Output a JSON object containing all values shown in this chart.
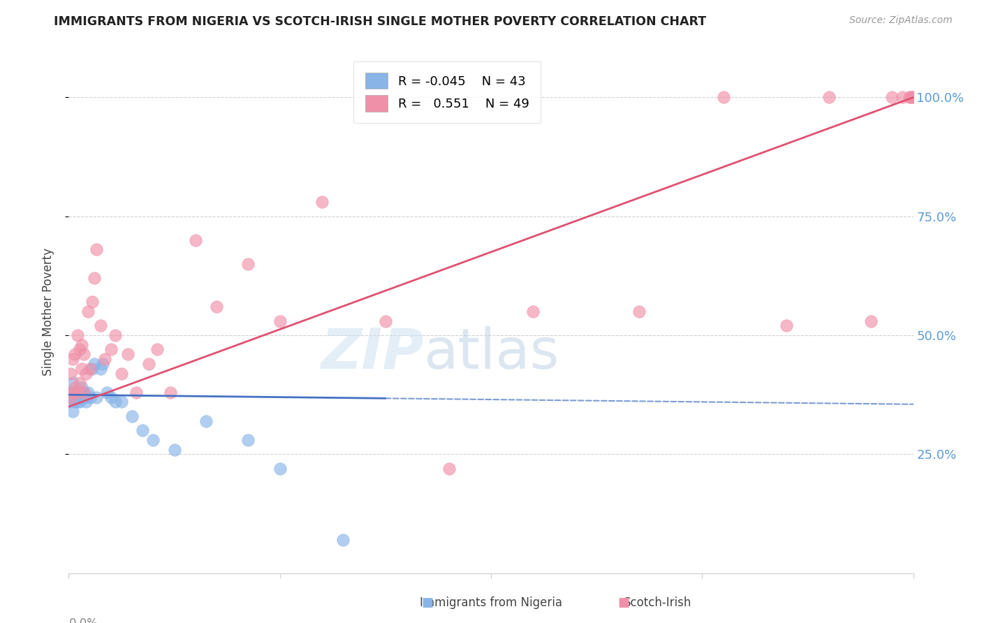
{
  "title": "IMMIGRANTS FROM NIGERIA VS SCOTCH-IRISH SINGLE MOTHER POVERTY CORRELATION CHART",
  "source": "Source: ZipAtlas.com",
  "ylabel": "Single Mother Poverty",
  "ytick_labels": [
    "100.0%",
    "75.0%",
    "50.0%",
    "25.0%"
  ],
  "ytick_values": [
    1.0,
    0.75,
    0.5,
    0.25
  ],
  "xlim": [
    0.0,
    0.4
  ],
  "ylim": [
    0.0,
    1.1
  ],
  "legend_r1": "R = -0.045",
  "legend_n1": "N = 43",
  "legend_r2": "R =  0.551",
  "legend_n2": "N = 49",
  "color_nigeria": "#88b4e8",
  "color_scotch": "#f090a8",
  "color_nigeria_line": "#4472c4",
  "color_scotch_line": "#e05070",
  "color_right_axis": "#5b9bd5",
  "watermark_zip": "ZIP",
  "watermark_atlas": "atlas",
  "nigeria_x": [
    0.0005,
    0.001,
    0.001,
    0.0015,
    0.002,
    0.002,
    0.002,
    0.003,
    0.003,
    0.003,
    0.003,
    0.004,
    0.004,
    0.004,
    0.005,
    0.005,
    0.005,
    0.006,
    0.006,
    0.006,
    0.007,
    0.007,
    0.008,
    0.008,
    0.009,
    0.01,
    0.011,
    0.012,
    0.013,
    0.015,
    0.016,
    0.018,
    0.02,
    0.022,
    0.025,
    0.03,
    0.035,
    0.04,
    0.05,
    0.065,
    0.085,
    0.1,
    0.13
  ],
  "nigeria_y": [
    0.37,
    0.36,
    0.38,
    0.37,
    0.34,
    0.37,
    0.4,
    0.36,
    0.37,
    0.38,
    0.37,
    0.36,
    0.37,
    0.38,
    0.36,
    0.37,
    0.38,
    0.37,
    0.38,
    0.39,
    0.37,
    0.38,
    0.36,
    0.37,
    0.38,
    0.37,
    0.43,
    0.44,
    0.37,
    0.43,
    0.44,
    0.38,
    0.37,
    0.36,
    0.36,
    0.33,
    0.3,
    0.28,
    0.26,
    0.32,
    0.28,
    0.22,
    0.07
  ],
  "scotch_x": [
    0.001,
    0.001,
    0.002,
    0.002,
    0.003,
    0.003,
    0.004,
    0.004,
    0.005,
    0.005,
    0.006,
    0.006,
    0.007,
    0.007,
    0.008,
    0.009,
    0.01,
    0.011,
    0.012,
    0.013,
    0.015,
    0.017,
    0.02,
    0.022,
    0.025,
    0.028,
    0.032,
    0.038,
    0.042,
    0.048,
    0.06,
    0.07,
    0.085,
    0.1,
    0.12,
    0.15,
    0.18,
    0.22,
    0.27,
    0.31,
    0.34,
    0.36,
    0.38,
    0.39,
    0.395,
    0.398,
    0.399,
    0.399,
    0.4
  ],
  "scotch_y": [
    0.37,
    0.42,
    0.38,
    0.45,
    0.39,
    0.46,
    0.38,
    0.5,
    0.4,
    0.47,
    0.43,
    0.48,
    0.38,
    0.46,
    0.42,
    0.55,
    0.43,
    0.57,
    0.62,
    0.68,
    0.52,
    0.45,
    0.47,
    0.5,
    0.42,
    0.46,
    0.38,
    0.44,
    0.47,
    0.38,
    0.7,
    0.56,
    0.65,
    0.53,
    0.78,
    0.53,
    0.22,
    0.55,
    0.55,
    1.0,
    0.52,
    1.0,
    0.53,
    1.0,
    1.0,
    1.0,
    1.0,
    1.0,
    1.0
  ]
}
